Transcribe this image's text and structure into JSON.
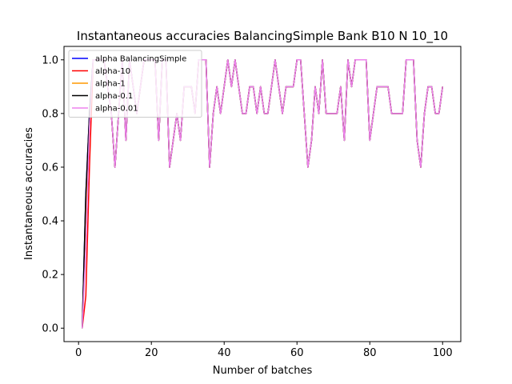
{
  "chart_data": {
    "type": "line",
    "title": "Instantaneous accuracies BalancingSimple Bank B10 N 10_10",
    "xlabel": "Number of batches",
    "ylabel": "Instantaneous accuracies",
    "xlim": [
      -4,
      105
    ],
    "ylim": [
      -0.05,
      1.05
    ],
    "xticks": [
      0,
      20,
      40,
      60,
      80,
      100
    ],
    "yticks": [
      0.0,
      0.2,
      0.4,
      0.6,
      0.8,
      1.0
    ],
    "xtick_labels": [
      "0",
      "20",
      "40",
      "60",
      "80",
      "100"
    ],
    "ytick_labels": [
      "0.0",
      "0.2",
      "0.4",
      "0.6",
      "0.8",
      "1.0"
    ],
    "grid": false,
    "legend_position": "top-left",
    "x": [
      1,
      2,
      3,
      4,
      5,
      6,
      7,
      8,
      9,
      10,
      11,
      12,
      13,
      14,
      15,
      16,
      17,
      18,
      19,
      20,
      21,
      22,
      23,
      24,
      25,
      26,
      27,
      28,
      29,
      30,
      31,
      32,
      33,
      34,
      35,
      36,
      37,
      38,
      39,
      40,
      41,
      42,
      43,
      44,
      45,
      46,
      47,
      48,
      49,
      50,
      51,
      52,
      53,
      54,
      55,
      56,
      57,
      58,
      59,
      60,
      61,
      62,
      63,
      64,
      65,
      66,
      67,
      68,
      69,
      70,
      71,
      72,
      73,
      74,
      75,
      76,
      77,
      78,
      79,
      80,
      81,
      82,
      83,
      84,
      85,
      86,
      87,
      88,
      89,
      90,
      91,
      92,
      93,
      94,
      95,
      96,
      97,
      98,
      99,
      100
    ],
    "series": [
      {
        "name": "alpha BalancingSimple",
        "color": "#0000ff",
        "values": [
          0.0,
          0.5,
          0.8,
          1.0,
          1.0,
          1.0,
          1.0,
          0.9,
          0.8,
          0.6,
          0.8,
          1.0,
          0.7,
          1.0,
          0.9,
          0.8,
          0.9,
          1.0,
          1.0,
          1.0,
          1.0,
          0.7,
          1.0,
          1.0,
          0.6,
          0.7,
          0.8,
          0.7,
          0.9,
          0.9,
          0.9,
          0.8,
          1.0,
          1.0,
          1.0,
          0.6,
          0.8,
          0.9,
          0.8,
          0.9,
          1.0,
          0.9,
          1.0,
          0.9,
          0.8,
          0.8,
          0.9,
          0.9,
          0.8,
          0.9,
          0.8,
          0.8,
          0.9,
          1.0,
          0.9,
          0.8,
          0.9,
          0.9,
          0.9,
          1.0,
          1.0,
          0.8,
          0.6,
          0.7,
          0.9,
          0.8,
          1.0,
          0.8,
          0.8,
          0.8,
          0.8,
          0.9,
          0.7,
          1.0,
          0.9,
          1.0,
          1.0,
          1.0,
          1.0,
          0.7,
          0.8,
          0.9,
          0.9,
          0.9,
          0.9,
          0.8,
          0.8,
          0.8,
          0.8,
          1.0,
          1.0,
          1.0,
          0.7,
          0.6,
          0.8,
          0.9,
          0.9,
          0.8,
          0.8,
          0.9
        ]
      },
      {
        "name": "alpha-10",
        "color": "#ff0000",
        "values": [
          0.0,
          0.12,
          0.6,
          1.0,
          1.0,
          1.0,
          1.0,
          0.9,
          0.8,
          0.6,
          0.8,
          1.0,
          0.7,
          1.0,
          0.9,
          0.8,
          0.9,
          1.0,
          1.0,
          1.0,
          1.0,
          0.7,
          1.0,
          1.0,
          0.6,
          0.7,
          0.8,
          0.7,
          0.9,
          0.9,
          0.9,
          0.8,
          1.0,
          1.0,
          1.0,
          0.6,
          0.8,
          0.9,
          0.8,
          0.9,
          1.0,
          0.9,
          1.0,
          0.9,
          0.8,
          0.8,
          0.9,
          0.9,
          0.8,
          0.9,
          0.8,
          0.8,
          0.9,
          1.0,
          0.9,
          0.8,
          0.9,
          0.9,
          0.9,
          1.0,
          1.0,
          0.8,
          0.6,
          0.7,
          0.9,
          0.8,
          1.0,
          0.8,
          0.8,
          0.8,
          0.8,
          0.9,
          0.7,
          1.0,
          0.9,
          1.0,
          1.0,
          1.0,
          1.0,
          0.7,
          0.8,
          0.9,
          0.9,
          0.9,
          0.9,
          0.8,
          0.8,
          0.8,
          0.8,
          1.0,
          1.0,
          1.0,
          0.7,
          0.6,
          0.8,
          0.9,
          0.9,
          0.8,
          0.8,
          0.9
        ]
      },
      {
        "name": "alpha-1",
        "color": "#ff9900",
        "values": [
          0.0,
          0.45,
          0.75,
          1.0,
          1.0,
          1.0,
          1.0,
          0.9,
          0.8,
          0.6,
          0.8,
          1.0,
          0.7,
          1.0,
          0.9,
          0.8,
          0.9,
          1.0,
          1.0,
          1.0,
          1.0,
          0.7,
          1.0,
          1.0,
          0.6,
          0.7,
          0.8,
          0.7,
          0.9,
          0.9,
          0.9,
          0.8,
          1.0,
          1.0,
          1.0,
          0.6,
          0.8,
          0.9,
          0.8,
          0.9,
          1.0,
          0.9,
          1.0,
          0.9,
          0.8,
          0.8,
          0.9,
          0.9,
          0.8,
          0.9,
          0.8,
          0.8,
          0.9,
          1.0,
          0.9,
          0.8,
          0.9,
          0.9,
          0.9,
          1.0,
          1.0,
          0.8,
          0.6,
          0.7,
          0.9,
          0.8,
          1.0,
          0.8,
          0.8,
          0.8,
          0.8,
          0.9,
          0.7,
          1.0,
          0.9,
          1.0,
          1.0,
          1.0,
          1.0,
          0.7,
          0.8,
          0.9,
          0.9,
          0.9,
          0.9,
          0.8,
          0.8,
          0.8,
          0.8,
          1.0,
          1.0,
          1.0,
          0.7,
          0.6,
          0.8,
          0.9,
          0.9,
          0.8,
          0.8,
          0.9
        ]
      },
      {
        "name": "alpha-0.1",
        "color": "#000000",
        "values": [
          0.0,
          0.5,
          0.8,
          1.0,
          1.0,
          1.0,
          1.0,
          0.9,
          0.8,
          0.6,
          0.8,
          1.0,
          0.7,
          1.0,
          0.9,
          0.8,
          0.9,
          1.0,
          1.0,
          1.0,
          1.0,
          0.7,
          1.0,
          1.0,
          0.6,
          0.7,
          0.8,
          0.7,
          0.9,
          0.9,
          0.9,
          0.8,
          1.0,
          1.0,
          1.0,
          0.6,
          0.8,
          0.9,
          0.8,
          0.9,
          1.0,
          0.9,
          1.0,
          0.9,
          0.8,
          0.8,
          0.9,
          0.9,
          0.8,
          0.9,
          0.8,
          0.8,
          0.9,
          1.0,
          0.9,
          0.8,
          0.9,
          0.9,
          0.9,
          1.0,
          1.0,
          0.8,
          0.6,
          0.7,
          0.9,
          0.8,
          1.0,
          0.8,
          0.8,
          0.8,
          0.8,
          0.9,
          0.7,
          1.0,
          0.9,
          1.0,
          1.0,
          1.0,
          1.0,
          0.7,
          0.8,
          0.9,
          0.9,
          0.9,
          0.9,
          0.8,
          0.8,
          0.8,
          0.8,
          1.0,
          1.0,
          1.0,
          0.7,
          0.6,
          0.8,
          0.9,
          0.9,
          0.8,
          0.8,
          0.9
        ]
      },
      {
        "name": "alpha-0.01",
        "color": "#ee82ee",
        "values": [
          0.0,
          0.3,
          0.75,
          1.0,
          1.0,
          1.0,
          1.0,
          0.9,
          0.8,
          0.6,
          0.8,
          1.0,
          0.7,
          1.0,
          0.9,
          0.8,
          0.9,
          1.0,
          1.0,
          1.0,
          1.0,
          0.7,
          1.0,
          1.0,
          0.6,
          0.7,
          0.8,
          0.7,
          0.9,
          0.9,
          0.9,
          0.8,
          1.0,
          1.0,
          1.0,
          0.6,
          0.8,
          0.9,
          0.8,
          0.9,
          1.0,
          0.9,
          1.0,
          0.9,
          0.8,
          0.8,
          0.9,
          0.9,
          0.8,
          0.9,
          0.8,
          0.8,
          0.9,
          1.0,
          0.9,
          0.8,
          0.9,
          0.9,
          0.9,
          1.0,
          1.0,
          0.8,
          0.6,
          0.7,
          0.9,
          0.8,
          1.0,
          0.8,
          0.8,
          0.8,
          0.8,
          0.9,
          0.7,
          1.0,
          0.9,
          1.0,
          1.0,
          1.0,
          1.0,
          0.7,
          0.8,
          0.9,
          0.9,
          0.9,
          0.9,
          0.8,
          0.8,
          0.8,
          0.8,
          1.0,
          1.0,
          1.0,
          0.7,
          0.6,
          0.8,
          0.9,
          0.9,
          0.8,
          0.8,
          0.9
        ]
      }
    ]
  }
}
